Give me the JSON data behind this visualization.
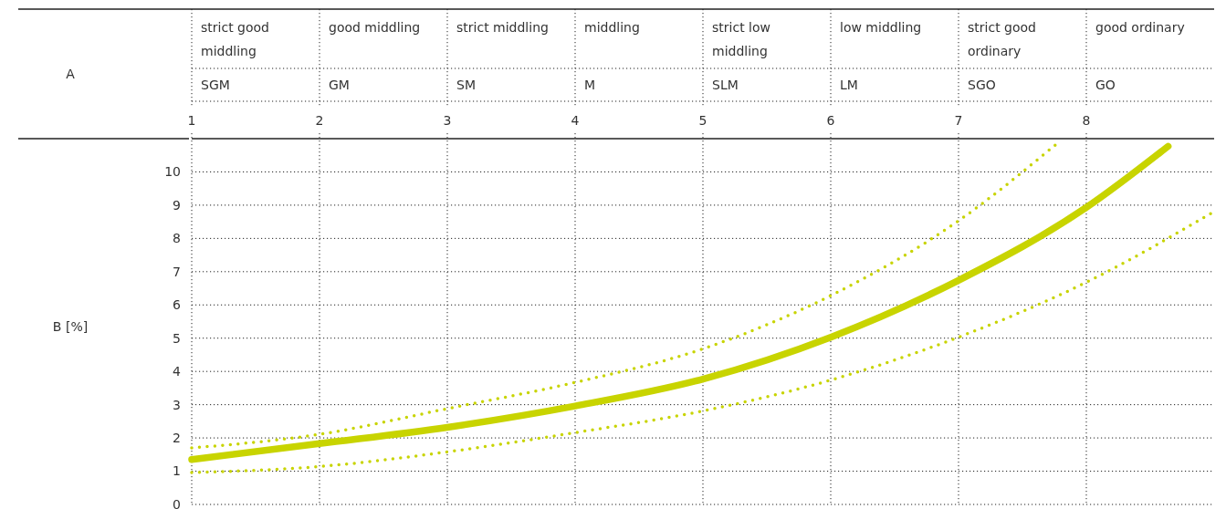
{
  "chart_data": {
    "type": "line",
    "xlim": [
      1,
      9
    ],
    "xticks": [
      1,
      2,
      3,
      4,
      5,
      6,
      7,
      8
    ],
    "annotations": [
      "A",
      "B [%]",
      "strict good middling",
      "good middling",
      "strict middling",
      "middling",
      "strict low middling",
      "low middling",
      "strict good ordinary",
      "good ordinary",
      "SGM",
      "GM",
      "SM",
      "M",
      "SLM",
      "LM",
      "SGO",
      "GO"
    ],
    "ylim": [
      0,
      11
    ],
    "yticks": [
      0,
      1,
      2,
      3,
      4,
      5,
      6,
      7,
      8,
      9,
      10
    ],
    "grid": true,
    "series": [
      {
        "color": "#c8d400",
        "line_style": "solid",
        "x": [
          1,
          2,
          3,
          4,
          5,
          6,
          7,
          8,
          8.64
        ],
        "values": [
          1.35,
          1.83,
          2.32,
          2.96,
          3.77,
          5.03,
          6.74,
          8.93,
          10.77
        ]
      },
      {
        "color": "#c8d400",
        "line_style": "dotted",
        "x": [
          1,
          2,
          3,
          4,
          5,
          6,
          7,
          7.77
        ],
        "values": [
          1.7,
          2.11,
          2.88,
          3.67,
          4.68,
          6.28,
          8.53,
          10.85
        ]
      },
      {
        "color": "#c8d400",
        "line_style": "dotted",
        "x": [
          1,
          2,
          3,
          4,
          5,
          6,
          7,
          8,
          9
        ],
        "values": [
          0.96,
          1.14,
          1.58,
          2.16,
          2.81,
          3.74,
          5.03,
          6.68,
          8.81
        ]
      }
    ]
  }
}
